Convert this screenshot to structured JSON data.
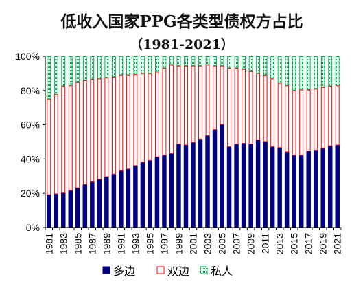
{
  "chart_data": {
    "type": "bar",
    "stacked": true,
    "title": "低收入国家PPG各类型债权方占比",
    "subtitle": "（1981-2021）",
    "ylim": [
      0,
      100
    ],
    "y_ticks": [
      "0%",
      "20%",
      "40%",
      "60%",
      "80%",
      "100%"
    ],
    "grid": false,
    "legend_position": "bottom",
    "categories": [
      "1981",
      "1982",
      "1983",
      "1984",
      "1985",
      "1986",
      "1987",
      "1988",
      "1989",
      "1990",
      "1991",
      "1992",
      "1993",
      "1994",
      "1995",
      "1996",
      "1997",
      "1998",
      "1999",
      "2000",
      "2001",
      "2002",
      "2003",
      "2004",
      "2005",
      "2006",
      "2007",
      "2008",
      "2009",
      "2010",
      "2011",
      "2012",
      "2013",
      "2014",
      "2015",
      "2016",
      "2017",
      "2018",
      "2019",
      "2020",
      "2021"
    ],
    "x_tick_labels": [
      "1981",
      "1983",
      "1985",
      "1987",
      "1989",
      "1991",
      "1993",
      "1995",
      "1997",
      "1999",
      "2001",
      "2003",
      "2005",
      "2007",
      "2009",
      "2011",
      "2013",
      "2015",
      "2017",
      "2019",
      "2021"
    ],
    "series": [
      {
        "name": "多边",
        "color": "#000080",
        "pattern": "solid",
        "values": [
          19,
          19.5,
          20,
          21.5,
          23,
          25,
          26.5,
          28,
          29.5,
          31,
          33,
          34,
          36,
          38,
          39,
          41,
          42,
          43,
          48.5,
          48,
          49.5,
          51.5,
          53.5,
          57,
          60,
          47,
          48.5,
          49,
          48.5,
          51,
          50,
          47,
          46.5,
          44,
          42,
          42,
          44.5,
          45,
          46,
          47.5,
          48
        ]
      },
      {
        "name": "双边",
        "color": "#ff0000",
        "pattern": "outline",
        "values": [
          56,
          58.5,
          62.5,
          61.5,
          62,
          61,
          60,
          59,
          58,
          57,
          56,
          55,
          53.5,
          52,
          51,
          50,
          51,
          52,
          46,
          46.5,
          45,
          43,
          41.5,
          37.5,
          34.5,
          46,
          44.5,
          43.5,
          43,
          39,
          39,
          40,
          38,
          39,
          38,
          38.5,
          36,
          36,
          36,
          35,
          35
        ]
      },
      {
        "name": "私人",
        "color": "#00b050",
        "pattern": "dotted",
        "values": [
          25,
          22,
          17.5,
          17,
          15,
          14,
          13.5,
          13,
          12.5,
          12,
          11,
          11,
          10.5,
          10,
          10,
          9,
          7,
          5,
          5.5,
          5.5,
          5.5,
          5.5,
          5,
          5.5,
          5.5,
          7,
          7,
          7.5,
          8.5,
          10,
          11,
          13,
          15.5,
          17,
          20,
          19.5,
          19.5,
          19,
          18,
          17.5,
          17
        ]
      }
    ]
  }
}
